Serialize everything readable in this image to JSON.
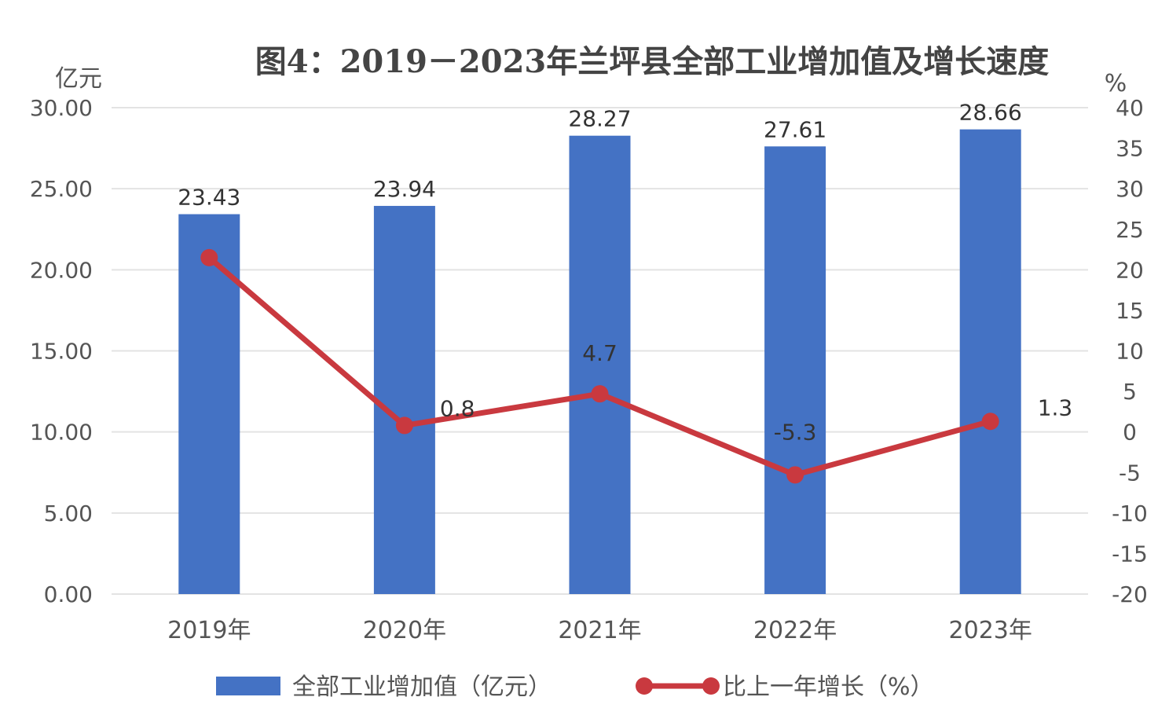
{
  "chart_data": {
    "type": "bar",
    "title": "图4：2019－2023年兰坪县全部工业增加值及增长速度",
    "categories": [
      "2019年",
      "2020年",
      "2021年",
      "2022年",
      "2023年"
    ],
    "y_left": {
      "unit": "亿元",
      "ylim": [
        0,
        30
      ],
      "ticks": [
        "0.00",
        "5.00",
        "10.00",
        "15.00",
        "20.00",
        "25.00",
        "30.00"
      ]
    },
    "y_right": {
      "unit": "%",
      "ylim": [
        -20,
        40
      ],
      "ticks": [
        "-20",
        "-15",
        "-10",
        "-5",
        "0",
        "5",
        "10",
        "15",
        "20",
        "25",
        "30",
        "35",
        "40"
      ]
    },
    "grid": true,
    "legend_position": "bottom",
    "series": [
      {
        "name": "全部工业增加值（亿元）",
        "type": "bar",
        "axis": "left",
        "color": "#4472C4",
        "values": [
          23.43,
          23.94,
          28.27,
          27.61,
          28.66
        ],
        "labels": [
          "23.43",
          "23.94",
          "28.27",
          "27.61",
          "28.66"
        ]
      },
      {
        "name": "比上一年增长（%）",
        "type": "line",
        "axis": "right",
        "color": "#C9393F",
        "values": [
          21.5,
          0.8,
          4.7,
          -5.3,
          1.3
        ],
        "labels": [
          "",
          "0.8",
          "4.7",
          "-5.3",
          "1.3"
        ],
        "label_colors": [
          "#333333",
          "#333333",
          "#333333",
          "#E8322E",
          "#111111"
        ]
      }
    ]
  }
}
